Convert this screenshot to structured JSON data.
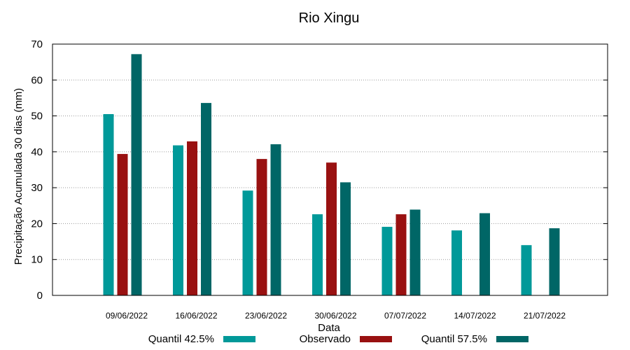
{
  "chart_data": {
    "type": "bar",
    "title": "Rio Xingu",
    "xlabel": "Data",
    "ylabel": "Precipitação Acumulada 30 dias (mm)",
    "ylim": [
      0,
      70
    ],
    "yticks": [
      0,
      10,
      20,
      30,
      40,
      50,
      60,
      70
    ],
    "grid": true,
    "legend_position": "bottom",
    "categories": [
      "09/06/2022",
      "16/06/2022",
      "23/06/2022",
      "30/06/2022",
      "07/07/2022",
      "14/07/2022",
      "21/07/2022"
    ],
    "series": [
      {
        "name": "Quantil 42.5%",
        "color": "#009999",
        "values": [
          50.5,
          41.8,
          29.2,
          22.6,
          19.1,
          18.1,
          14.0
        ]
      },
      {
        "name": "Observado",
        "color": "#991111",
        "values": [
          39.4,
          42.9,
          38.0,
          37.0,
          22.6,
          null,
          null
        ]
      },
      {
        "name": "Quantil 57.5%",
        "color": "#006666",
        "values": [
          67.2,
          53.6,
          42.1,
          31.5,
          23.9,
          22.9,
          18.7
        ]
      }
    ]
  }
}
